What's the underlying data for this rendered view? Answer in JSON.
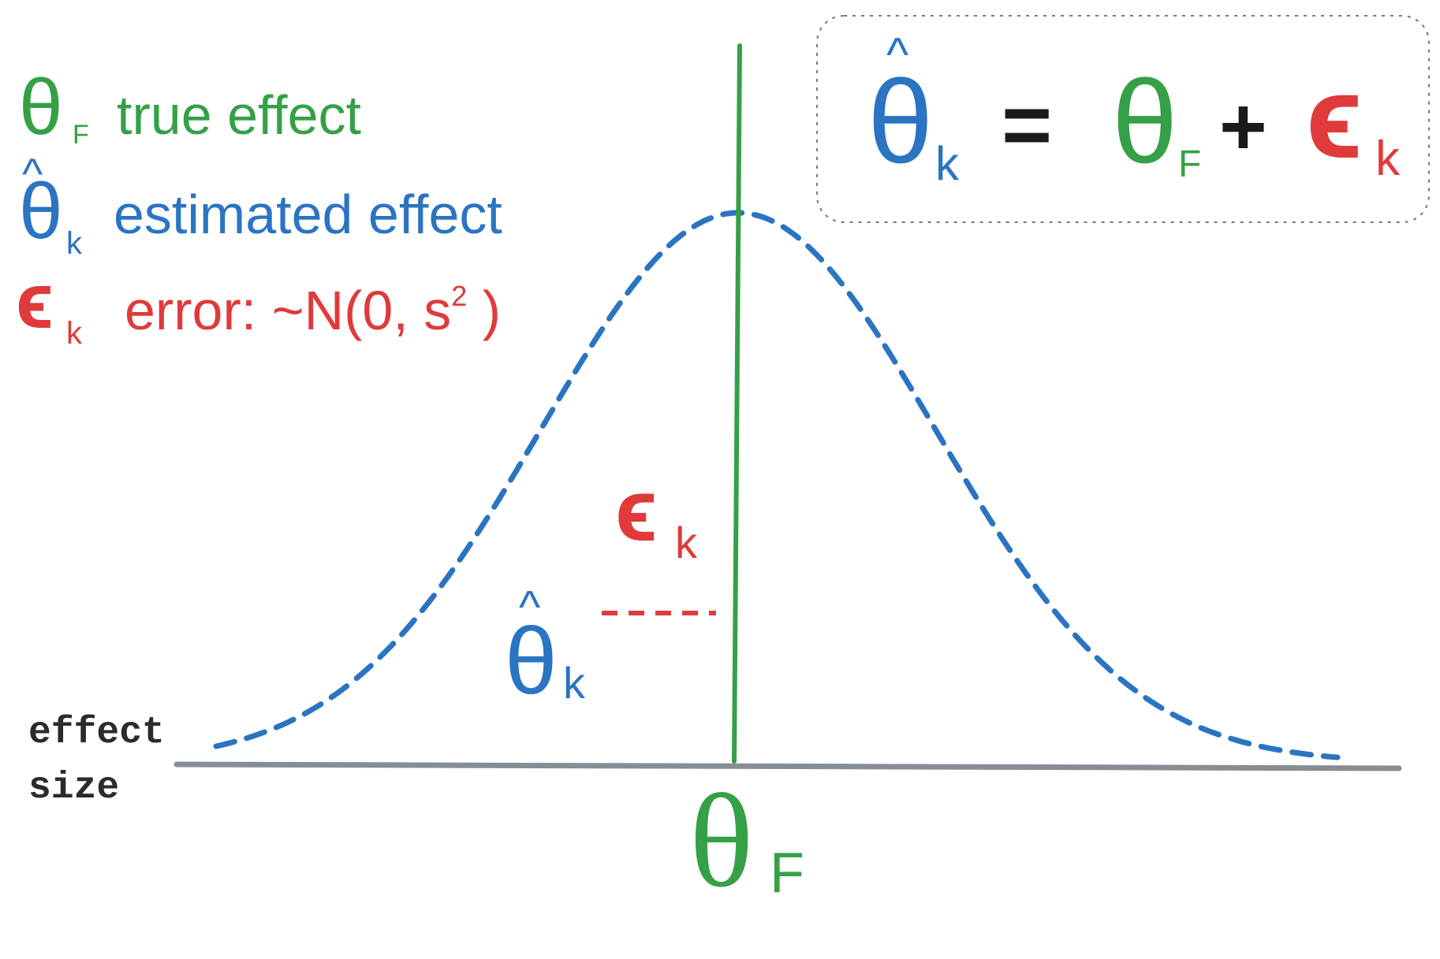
{
  "colors": {
    "green": "#35A046",
    "blue": "#2A74C2",
    "red": "#E03A3A",
    "black": "#1A1A1A",
    "axis": "#878D95",
    "box_border": "#777777",
    "label_dark": "#2B2B2B"
  },
  "legend": {
    "true_effect": {
      "symbol": "θ",
      "subscript": "F",
      "text": "true effect"
    },
    "estimated_effect": {
      "symbol": "θ",
      "hat": "^",
      "subscript": "k",
      "text": "estimated effect"
    },
    "error": {
      "symbol": "ϵ",
      "subscript": "k",
      "text_before": "error: ~N(0, s",
      "superscript": "2",
      "text_after": " )"
    }
  },
  "equation": {
    "lhs_symbol": "θ",
    "lhs_hat": "^",
    "lhs_subscript": "k",
    "equals": "=",
    "theta_f_symbol": "θ",
    "theta_f_subscript": "F",
    "plus": "+",
    "eps_symbol": "ϵ",
    "eps_subscript": "k"
  },
  "axis": {
    "label_line1": "effect",
    "label_line2": "size",
    "center_symbol": "θ",
    "center_subscript": "F"
  },
  "annotations": {
    "epsilon": {
      "symbol": "ϵ",
      "subscript": "k"
    },
    "theta_hat": {
      "symbol": "θ",
      "hat": "^",
      "subscript": "k"
    }
  },
  "curve": {
    "style": "dashed",
    "shape": "bell"
  }
}
